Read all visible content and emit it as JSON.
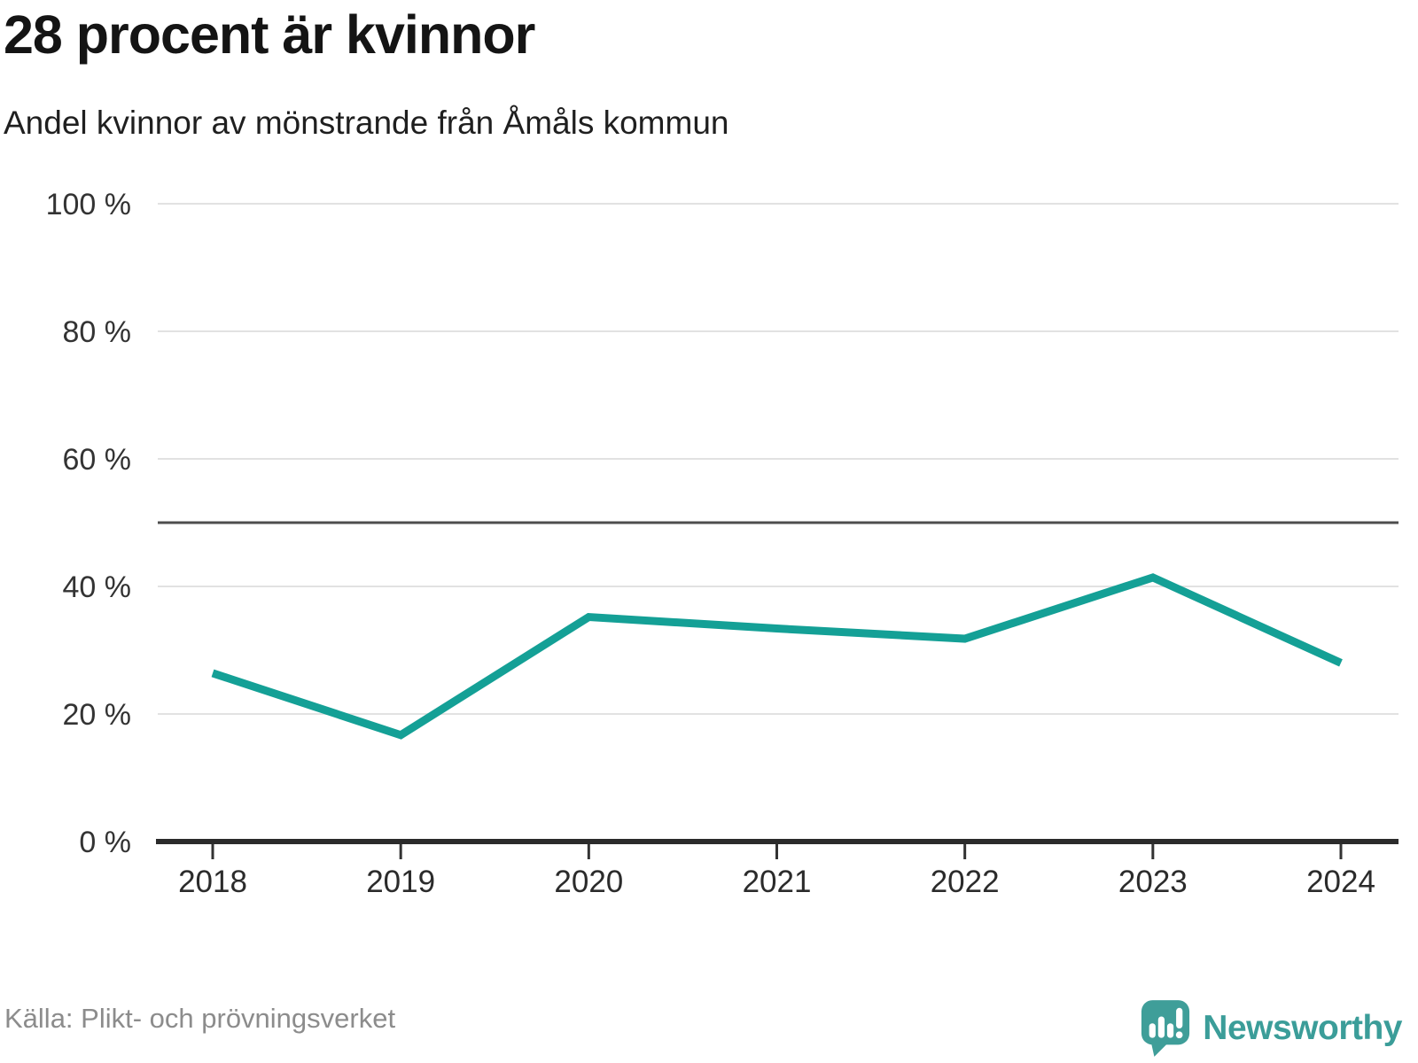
{
  "header": {
    "title": "28 procent är kvinnor",
    "subtitle": "Andel kvinnor av mönstrande från Åmåls kommun"
  },
  "chart_data": {
    "type": "line",
    "title": "28 procent är kvinnor",
    "subtitle": "Andel kvinnor av mönstrande från Åmåls kommun",
    "x": [
      "2018",
      "2019",
      "2020",
      "2021",
      "2022",
      "2023",
      "2024"
    ],
    "series": [
      {
        "name": "Andel kvinnor av mönstrande",
        "values": [
          26.4,
          16.7,
          35.2,
          33.4,
          31.8,
          41.4,
          28.0
        ]
      }
    ],
    "xlabel": "",
    "ylabel": "",
    "ylim": [
      0,
      100
    ],
    "yticks": [
      0,
      20,
      40,
      60,
      80,
      100
    ],
    "ytick_labels": [
      "0 %",
      "20 %",
      "40 %",
      "60 %",
      "80 %",
      "100 %"
    ],
    "reference_line": 50,
    "grid": "horizontal",
    "legend": "none",
    "line_color": "#14a096",
    "gridline_color": "#e2e2e2",
    "reference_line_color": "#4d4d4d",
    "axis_color": "#2b2b2b",
    "tick_color": "#333333"
  },
  "footer": {
    "source": "Källa: Plikt- och prövningsverket",
    "brand": "Newsworthy",
    "brand_color": "#3b9d99",
    "brand_mark_color": "#3f9e99"
  }
}
